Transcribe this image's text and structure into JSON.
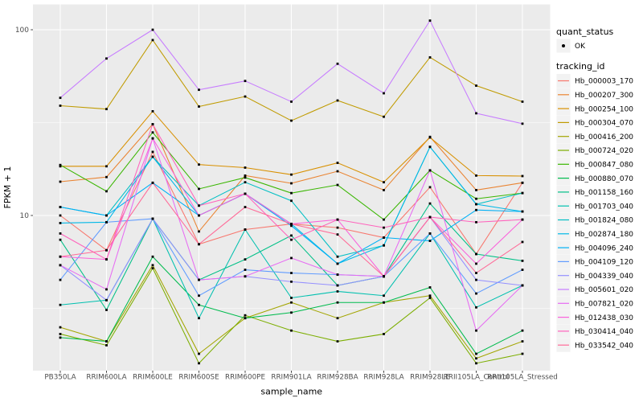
{
  "figure": {
    "background": "#FFFFFF",
    "panel_background": "#EBEBEB",
    "grid_color": "#FFFFFF",
    "tick_color": "#333333",
    "tick_label_color": "#4D4D4D",
    "axis_title_color": "#000000",
    "legend_key_background": "#F2F2F2",
    "point_color": "#000000"
  },
  "chart_data": {
    "type": "line",
    "title": "",
    "xlabel": "sample_name",
    "ylabel": "FPKM + 1",
    "y_scale": "log10",
    "grid": {
      "major_y": [
        100,
        10
      ],
      "minor_y": [
        31.62,
        3.162
      ]
    },
    "y_tick_values": [
      100,
      10
    ],
    "y_tick_labels": [
      "100",
      "10"
    ],
    "x_categories": [
      "PB350LA",
      "RRIM600LA",
      "RRIM600LE",
      "RRIM600SE",
      "RRIM600PE",
      "RRIM901LA",
      "RRIM928BA",
      "RRIM928LA",
      "RRIM928LE",
      "RRII105LA_Control",
      "RRII105LA_Stressed"
    ],
    "legend_position": "right",
    "legends": [
      {
        "title": "quant_status",
        "items": [
          {
            "label": "OK",
            "marker": "black-point"
          }
        ]
      },
      {
        "title": "tracking_id",
        "items_from": "series"
      }
    ],
    "series": [
      {
        "name": "Hb_000003_170",
        "color": "#F8766D",
        "values": [
          10.0,
          6.5,
          22.0,
          7.0,
          8.4,
          9.0,
          8.6,
          7.6,
          14.2,
          6.2,
          15.0
        ]
      },
      {
        "name": "Hb_000207_300",
        "color": "#EA8331",
        "values": [
          15.2,
          16.1,
          31.0,
          8.2,
          16.4,
          14.9,
          17.3,
          13.7,
          26.5,
          13.7,
          15.0
        ]
      },
      {
        "name": "Hb_000254_100",
        "color": "#D89000",
        "values": [
          18.4,
          18.4,
          36.4,
          18.8,
          18.1,
          16.6,
          19.2,
          15.1,
          26.3,
          16.4,
          16.3
        ]
      },
      {
        "name": "Hb_000304_070",
        "color": "#C09B00",
        "values": [
          39.0,
          37.4,
          88.0,
          38.6,
          43.7,
          32.4,
          41.6,
          34.0,
          71.0,
          50.0,
          41.0
        ]
      },
      {
        "name": "Hb_000416_200",
        "color": "#A3A500",
        "values": [
          2.5,
          2.1,
          5.4,
          1.8,
          2.8,
          3.4,
          2.8,
          3.4,
          3.7,
          1.7,
          2.1
        ]
      },
      {
        "name": "Hb_000724_020",
        "color": "#7CAE00",
        "values": [
          2.3,
          2.0,
          5.2,
          1.6,
          2.9,
          2.4,
          2.1,
          2.3,
          3.6,
          1.6,
          1.8
        ]
      },
      {
        "name": "Hb_000847_080",
        "color": "#39B600",
        "values": [
          18.7,
          13.5,
          28.0,
          13.9,
          16.0,
          13.2,
          14.6,
          9.5,
          17.5,
          12.3,
          13.2
        ]
      },
      {
        "name": "Hb_000880_070",
        "color": "#00BB4E",
        "values": [
          2.2,
          2.1,
          6.0,
          3.3,
          2.8,
          3.0,
          3.4,
          3.4,
          4.1,
          1.8,
          2.4
        ]
      },
      {
        "name": "Hb_001158_160",
        "color": "#00C087",
        "values": [
          7.4,
          3.1,
          9.6,
          4.5,
          5.8,
          7.8,
          4.2,
          4.7,
          11.6,
          6.2,
          5.7
        ]
      },
      {
        "name": "Hb_001703_040",
        "color": "#00C0AF",
        "values": [
          3.3,
          3.5,
          9.6,
          2.8,
          8.4,
          3.6,
          3.9,
          3.7,
          8.0,
          3.2,
          4.2
        ]
      },
      {
        "name": "Hb_001824_080",
        "color": "#00BFC4",
        "values": [
          11.1,
          10.0,
          20.7,
          11.3,
          15.1,
          12.0,
          6.0,
          6.9,
          23.4,
          11.5,
          13.2
        ]
      },
      {
        "name": "Hb_002874_180",
        "color": "#00B8E7",
        "values": [
          9.1,
          9.2,
          20.7,
          10.0,
          13.1,
          9.0,
          5.5,
          6.9,
          23.4,
          11.5,
          10.5
        ]
      },
      {
        "name": "Hb_004096_240",
        "color": "#00B0F6",
        "values": [
          11.1,
          10.0,
          15.0,
          10.0,
          13.1,
          8.8,
          5.5,
          7.6,
          7.3,
          10.7,
          10.5
        ]
      },
      {
        "name": "Hb_004109_120",
        "color": "#619CFF",
        "values": [
          4.5,
          9.2,
          9.6,
          3.7,
          5.1,
          4.9,
          4.8,
          4.7,
          8.0,
          3.8,
          5.1
        ]
      },
      {
        "name": "Hb_004339_040",
        "color": "#9590FF",
        "values": [
          5.4,
          3.5,
          9.6,
          4.5,
          4.7,
          4.4,
          4.2,
          4.7,
          9.8,
          4.5,
          4.2
        ]
      },
      {
        "name": "Hb_005601_020",
        "color": "#C77CFF",
        "values": [
          43.0,
          70.0,
          100.0,
          47.5,
          53.0,
          41.0,
          65.6,
          45.5,
          112.0,
          35.5,
          31.2
        ]
      },
      {
        "name": "Hb_007821_020",
        "color": "#E76BF3",
        "values": [
          5.4,
          4.0,
          26.0,
          4.5,
          4.7,
          5.9,
          4.8,
          4.7,
          17.5,
          2.4,
          4.2
        ]
      },
      {
        "name": "Hb_012438_030",
        "color": "#FA62DB",
        "values": [
          6.0,
          5.8,
          26.0,
          10.0,
          13.1,
          9.0,
          9.5,
          4.7,
          9.8,
          5.5,
          9.5
        ]
      },
      {
        "name": "Hb_030414_040",
        "color": "#FF62BC",
        "values": [
          8.0,
          5.8,
          31.0,
          11.3,
          13.1,
          7.4,
          9.5,
          8.6,
          9.8,
          9.2,
          9.5
        ]
      },
      {
        "name": "Hb_033542_040",
        "color": "#FF6A98",
        "values": [
          6.0,
          6.5,
          15.0,
          7.0,
          11.1,
          9.0,
          7.9,
          4.7,
          9.8,
          4.9,
          7.2
        ]
      }
    ]
  }
}
